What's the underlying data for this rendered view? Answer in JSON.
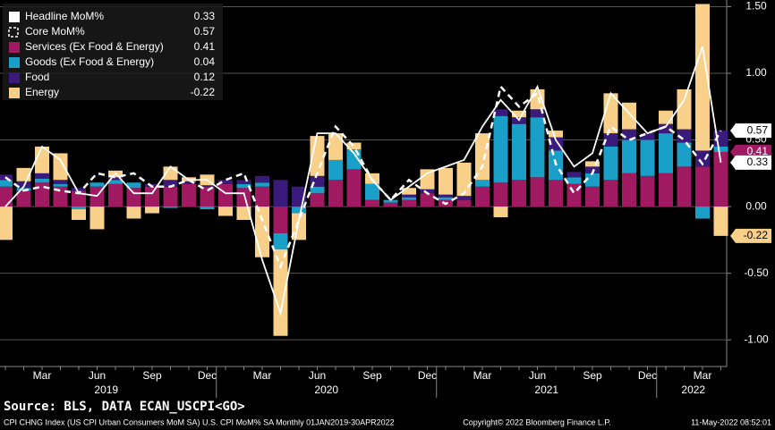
{
  "chart_data": {
    "type": "bar",
    "categories": [
      null,
      null,
      "Mar",
      null,
      null,
      "Jun",
      null,
      null,
      "Sep",
      null,
      null,
      "Dec",
      null,
      null,
      "Mar",
      null,
      null,
      "Jun",
      null,
      null,
      "Sep",
      null,
      null,
      "Dec",
      null,
      null,
      "Mar",
      null,
      null,
      "Jun",
      null,
      null,
      "Sep",
      null,
      null,
      "Dec",
      null,
      null,
      "Mar",
      null
    ],
    "year_labels": [
      "2019",
      "2020",
      "2021",
      "2022"
    ],
    "ylim": [
      -1.2,
      1.55
    ],
    "yticks": [
      {
        "value": 1.5,
        "label": "1.50"
      },
      {
        "value": 1,
        "label": "1.00"
      },
      {
        "value": 0.5,
        "label": "0.50"
      },
      {
        "value": 0,
        "label": "0.00"
      },
      {
        "value": -0.5,
        "label": "-0.50"
      },
      {
        "value": -1,
        "label": "-1.00"
      }
    ],
    "grid": true,
    "series": [
      {
        "name": "Headline MoM%",
        "type": "line",
        "color": "#ffffff",
        "end_label": true,
        "values": [
          0.0,
          0.15,
          0.45,
          0.35,
          0.1,
          0.08,
          0.25,
          0.1,
          0.1,
          0.3,
          0.2,
          0.2,
          0.1,
          0.1,
          -0.4,
          -0.8,
          -0.1,
          0.55,
          0.55,
          0.4,
          0.2,
          0.05,
          0.15,
          0.25,
          0.3,
          0.35,
          0.6,
          0.8,
          0.65,
          0.9,
          0.5,
          0.3,
          0.4,
          0.85,
          0.7,
          0.55,
          0.6,
          0.8,
          1.2,
          0.33
        ]
      },
      {
        "name": "Core MoM%",
        "type": "line",
        "dash": true,
        "color": "#ffffff",
        "end_label": true,
        "values": [
          0.22,
          0.12,
          0.15,
          0.12,
          0.1,
          0.25,
          0.22,
          0.25,
          0.15,
          0.15,
          0.2,
          0.12,
          0.2,
          0.25,
          -0.1,
          -0.45,
          -0.1,
          0.25,
          0.6,
          0.45,
          0.2,
          0.05,
          0.2,
          0.1,
          0.02,
          0.1,
          0.3,
          0.9,
          0.75,
          0.85,
          0.32,
          0.1,
          0.25,
          0.6,
          0.5,
          0.55,
          0.6,
          0.5,
          0.32,
          0.57
        ]
      },
      {
        "name": "Services (Ex Food & Energy)",
        "type": "bar",
        "color": "#a01a62",
        "end_label": true,
        "values": [
          0.15,
          0.12,
          0.18,
          0.15,
          0.12,
          0.15,
          0.17,
          0.14,
          0.15,
          0.15,
          0.17,
          0.15,
          0.17,
          0.14,
          0.15,
          -0.2,
          0.0,
          0.1,
          0.2,
          0.28,
          0.05,
          0.03,
          0.05,
          0.1,
          0.05,
          0.05,
          0.15,
          0.18,
          0.2,
          0.22,
          0.2,
          0.17,
          0.15,
          0.2,
          0.25,
          0.23,
          0.25,
          0.3,
          0.3,
          0.41
        ]
      },
      {
        "name": "Goods (Ex Food & Energy)",
        "type": "bar",
        "color": "#1aa0c8",
        "values": [
          0.05,
          0.02,
          0.03,
          0.02,
          -0.02,
          0.03,
          0.03,
          0.04,
          0.0,
          -0.01,
          0.0,
          -0.02,
          0.0,
          0.03,
          0.03,
          -0.12,
          -0.05,
          0.05,
          0.15,
          0.15,
          0.12,
          0.02,
          0.02,
          0.0,
          0.02,
          0.0,
          0.05,
          0.5,
          0.42,
          0.45,
          0.22,
          0.05,
          0.1,
          0.25,
          0.25,
          0.27,
          0.3,
          0.18,
          -0.09,
          0.04
        ]
      },
      {
        "name": "Food",
        "type": "bar",
        "color": "#3a1a7a",
        "values": [
          0.04,
          0.05,
          0.04,
          0.03,
          0.02,
          0.0,
          0.02,
          0.0,
          0.02,
          0.05,
          0.02,
          0.01,
          0.03,
          0.03,
          0.05,
          0.2,
          0.15,
          0.08,
          0.0,
          0.0,
          0.0,
          0.0,
          0.02,
          0.03,
          0.02,
          0.03,
          0.0,
          0.05,
          0.05,
          0.06,
          0.1,
          0.04,
          0.05,
          0.1,
          0.08,
          0.05,
          0.07,
          0.1,
          0.12,
          0.12
        ]
      },
      {
        "name": "Energy",
        "type": "bar",
        "color": "#f9d08a",
        "end_label": true,
        "values": [
          -0.25,
          0.1,
          0.2,
          0.2,
          -0.08,
          -0.17,
          0.05,
          -0.09,
          -0.05,
          0.1,
          0.03,
          0.08,
          -0.07,
          -0.1,
          -0.38,
          -0.65,
          -0.2,
          0.3,
          0.2,
          0.05,
          0.08,
          0.0,
          0.05,
          0.15,
          0.2,
          0.25,
          0.35,
          -0.08,
          0.05,
          0.15,
          0.05,
          0.0,
          0.04,
          0.3,
          0.2,
          0.0,
          0.1,
          0.3,
          1.1,
          -0.22
        ]
      }
    ],
    "source": "Source: BLS, DATA ECAN_USCPI<GO>",
    "footer_left": "CPI CHNG Index (US CPI Urban Consumers MoM SA) U.S. CPI MoM% SA  Monthly 01JAN2019-30APR2022",
    "footer_center": "Copyright© 2022 Bloomberg Finance L.P.",
    "footer_right": "11-May-2022 08:52:01"
  }
}
